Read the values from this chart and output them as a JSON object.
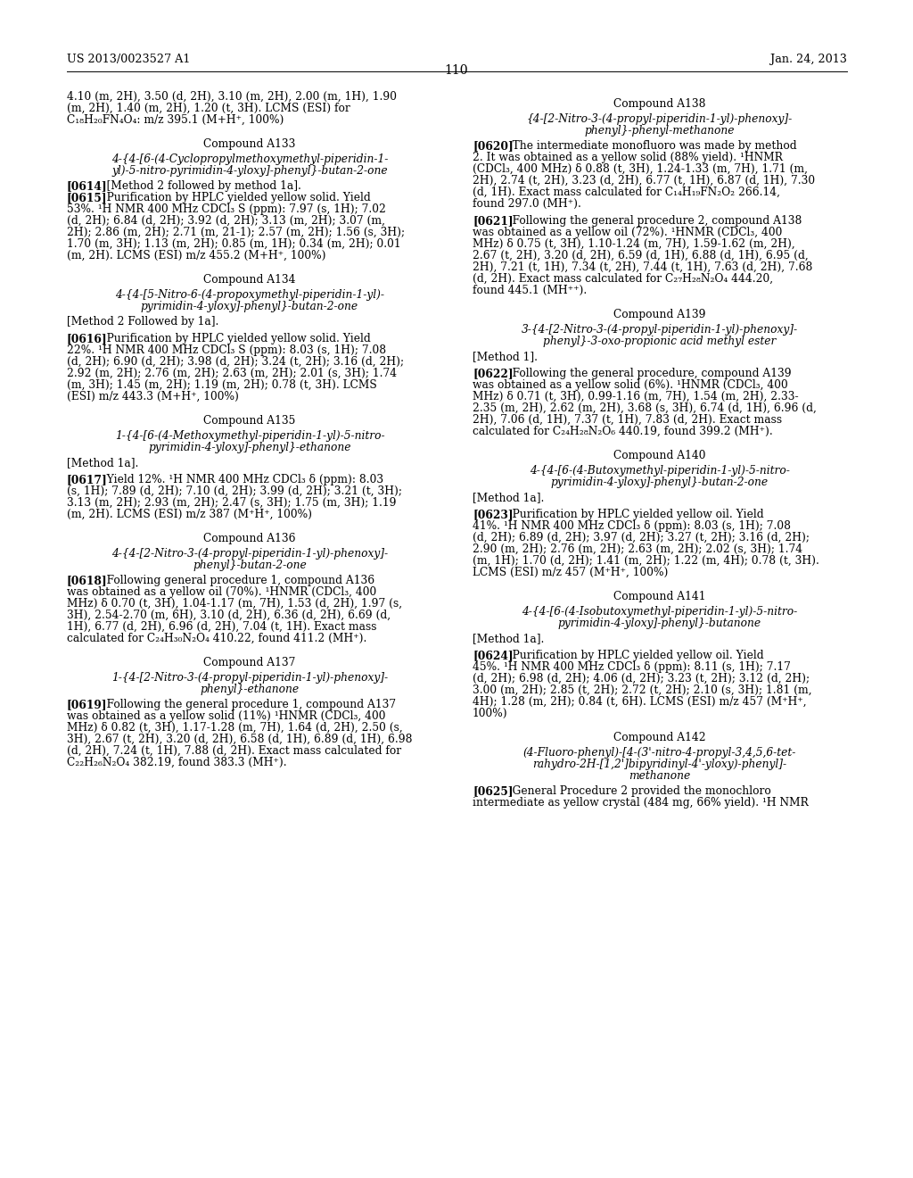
{
  "background_color": "#ffffff",
  "header_left": "US 2013/0023527 A1",
  "header_center": "110",
  "header_right": "Jan. 24, 2013",
  "left_column": [
    {
      "type": "continuation",
      "lines": [
        "4.10 (m, 2H), 3.50 (d, 2H), 3.10 (m, 2H), 2.00 (m, 1H), 1.90",
        "(m, 2H), 1.40 (m, 2H), 1.20 (t, 3H). LCMS (ESI) for",
        "C₁₈H₂₀FN₄O₄: m/z 395.1 (M+H⁺, 100%)"
      ]
    },
    {
      "type": "compound_title",
      "text": "Compound A133"
    },
    {
      "type": "compound_name",
      "lines": [
        "4-{4-[6-(4-Cyclopropylmethoxymethyl-piperidin-1-",
        "yl)-5-nitro-pyrimidin-4-yloxy]-phenyl}-butan-2-one"
      ]
    },
    {
      "type": "bold_bracket",
      "text": "[0614]",
      "rest": "   [Method 2 followed by method 1a]."
    },
    {
      "type": "bold_bracket",
      "text": "[0615]",
      "rest": "   Purification by HPLC yielded yellow solid. Yield"
    },
    {
      "type": "body_lines",
      "lines": [
        "53%. ¹H NMR 400 MHz CDCl₃ S (ppm): 7.97 (s, 1H); 7.02",
        "(d, 2H); 6.84 (d, 2H); 3.92 (d, 2H); 3.13 (m, 2H); 3.07 (m,",
        "2H); 2.86 (m, 2H); 2.71 (m, 21-1); 2.57 (m, 2H); 1.56 (s, 3H);",
        "1.70 (m, 3H); 1.13 (m, 2H); 0.85 (m, 1H); 0.34 (m, 2H); 0.01",
        "(m, 2H). LCMS (ESI) m/z 455.2 (M+H⁺, 100%)"
      ]
    },
    {
      "type": "compound_title",
      "text": "Compound A134"
    },
    {
      "type": "compound_name",
      "lines": [
        "4-{4-[5-Nitro-6-(4-propoxymethyl-piperidin-1-yl)-",
        "pyrimidin-4-yloxy]-phenyl}-butan-2-one"
      ]
    },
    {
      "type": "body_lines",
      "lines": [
        "[Method 2 Followed by 1a]."
      ]
    },
    {
      "type": "bold_bracket",
      "text": "[0616]",
      "rest": "   Purification by HPLC yielded yellow solid. Yield"
    },
    {
      "type": "body_lines",
      "lines": [
        "22%. ¹H NMR 400 MHz CDCl₃ S (ppm): 8.03 (s, 1H); 7.08",
        "(d, 2H); 6.90 (d, 2H); 3.98 (d, 2H); 3.24 (t, 2H); 3.16 (d, 2H);",
        "2.92 (m, 2H); 2.76 (m, 2H); 2.63 (m, 2H); 2.01 (s, 3H); 1.74",
        "(m, 3H); 1.45 (m, 2H); 1.19 (m, 2H); 0.78 (t, 3H). LCMS",
        "(ESI) m/z 443.3 (M+H⁺, 100%)"
      ]
    },
    {
      "type": "compound_title",
      "text": "Compound A135"
    },
    {
      "type": "compound_name",
      "lines": [
        "1-{4-[6-(4-Methoxymethyl-piperidin-1-yl)-5-nitro-",
        "pyrimidin-4-yloxy]-phenyl}-ethanone"
      ]
    },
    {
      "type": "body_lines",
      "lines": [
        "[Method 1a]."
      ]
    },
    {
      "type": "bold_bracket",
      "text": "[0617]",
      "rest": "   Yield 12%. ¹H NMR 400 MHz CDCl₃ δ (ppm): 8.03"
    },
    {
      "type": "body_lines",
      "lines": [
        "(s, 1H); 7.89 (d, 2H); 7.10 (d, 2H); 3.99 (d, 2H); 3.21 (t, 3H);",
        "3.13 (m, 2H); 2.93 (m, 2H); 2.47 (s, 3H); 1.75 (m, 3H); 1.19",
        "(m, 2H). LCMS (ESI) m/z 387 (M⁺H⁺, 100%)"
      ]
    },
    {
      "type": "compound_title",
      "text": "Compound A136"
    },
    {
      "type": "compound_name",
      "lines": [
        "4-{4-[2-Nitro-3-(4-propyl-piperidin-1-yl)-phenoxy]-",
        "phenyl}-butan-2-one"
      ]
    },
    {
      "type": "bold_bracket",
      "text": "[0618]",
      "rest": "   Following general procedure 1, compound A136"
    },
    {
      "type": "body_lines",
      "lines": [
        "was obtained as a yellow oil (70%). ¹HNMR (CDCl₃, 400",
        "MHz) δ 0.70 (t, 3H), 1.04-1.17 (m, 7H), 1.53 (d, 2H), 1.97 (s,",
        "3H), 2.54-2.70 (m, 6H), 3.10 (d, 2H), 6.36 (d, 2H), 6.69 (d,",
        "1H), 6.77 (d, 2H), 6.96 (d, 2H), 7.04 (t, 1H). Exact mass",
        "calculated for C₂₄H₃₀N₂O₄ 410.22, found 411.2 (MH⁺)."
      ]
    },
    {
      "type": "compound_title",
      "text": "Compound A137"
    },
    {
      "type": "compound_name",
      "lines": [
        "1-{4-[2-Nitro-3-(4-propyl-piperidin-1-yl)-phenoxy]-",
        "phenyl}-ethanone"
      ]
    },
    {
      "type": "bold_bracket",
      "text": "[0619]",
      "rest": "   Following the general procedure 1, compound A137"
    },
    {
      "type": "body_lines",
      "lines": [
        "was obtained as a yellow solid (11%) ¹HNMR (CDCl₃, 400",
        "MHz) δ 0.82 (t, 3H), 1.17-1.28 (m, 7H), 1.64 (d, 2H), 2.50 (s,",
        "3H), 2.67 (t, 2H), 3.20 (d, 2H), 6.58 (d, 1H), 6.89 (d, 1H), 6.98",
        "(d, 2H), 7.24 (t, 1H), 7.88 (d, 2H). Exact mass calculated for",
        "C₂₂H₂₆N₂O₄ 382.19, found 383.3 (MH⁺)."
      ]
    }
  ],
  "right_column": [
    {
      "type": "compound_title",
      "text": "Compound A138"
    },
    {
      "type": "compound_name",
      "lines": [
        "{4-[2-Nitro-3-(4-propyl-piperidin-1-yl)-phenoxy]-",
        "phenyl}-phenyl-methanone"
      ]
    },
    {
      "type": "bold_bracket",
      "text": "[0620]",
      "rest": "   The intermediate monofluoro was made by method"
    },
    {
      "type": "body_lines",
      "lines": [
        "2. It was obtained as a yellow solid (88% yield). ¹HNMR",
        "(CDCl₃, 400 MHz) δ 0.88 (t, 3H), 1.24-1.33 (m, 7H), 1.71 (m,",
        "2H), 2.74 (t, 2H), 3.23 (d, 2H), 6.77 (t, 1H), 6.87 (d, 1H), 7.30",
        "(d, 1H). Exact mass calculated for C₁₄H₁₉FN₂O₂ 266.14,",
        "found 297.0 (MH⁺)."
      ]
    },
    {
      "type": "bold_bracket",
      "text": "[0621]",
      "rest": "   Following the general procedure 2, compound A138"
    },
    {
      "type": "body_lines",
      "lines": [
        "was obtained as a yellow oil (72%). ¹HNMR (CDCl₃, 400",
        "MHz) δ 0.75 (t, 3H), 1.10-1.24 (m, 7H), 1.59-1.62 (m, 2H),",
        "2.67 (t, 2H), 3.20 (d, 2H), 6.59 (d, 1H), 6.88 (d, 1H), 6.95 (d,",
        "2H), 7.21 (t, 1H), 7.34 (t, 2H), 7.44 (t, 1H), 7.63 (d, 2H), 7.68",
        "(d, 2H). Exact mass calculated for C₂₇H₂₈N₂O₄ 444.20,",
        "found 445.1 (MH⁺⁺)."
      ]
    },
    {
      "type": "compound_title",
      "text": "Compound A139"
    },
    {
      "type": "compound_name",
      "lines": [
        "3-{4-[2-Nitro-3-(4-propyl-piperidin-1-yl)-phenoxy]-",
        "phenyl}-3-oxo-propionic acid methyl ester"
      ]
    },
    {
      "type": "body_lines",
      "lines": [
        "[Method 1]."
      ]
    },
    {
      "type": "bold_bracket",
      "text": "[0622]",
      "rest": "   Following the general procedure, compound A139"
    },
    {
      "type": "body_lines",
      "lines": [
        "was obtained as a yellow solid (6%). ¹HNMR (CDCl₃, 400",
        "MHz) δ 0.71 (t, 3H), 0.99-1.16 (m, 7H), 1.54 (m, 2H), 2.33-",
        "2.35 (m, 2H), 2.62 (m, 2H), 3.68 (s, 3H), 6.74 (d, 1H), 6.96 (d,",
        "2H), 7.06 (d, 1H), 7.37 (t, 1H), 7.83 (d, 2H). Exact mass",
        "calculated for C₂₄H₂₈N₂O₆ 440.19, found 399.2 (MH⁺)."
      ]
    },
    {
      "type": "compound_title",
      "text": "Compound A140"
    },
    {
      "type": "compound_name",
      "lines": [
        "4-{4-[6-(4-Butoxymethyl-piperidin-1-yl)-5-nitro-",
        "pyrimidin-4-yloxy]-phenyl}-butan-2-one"
      ]
    },
    {
      "type": "body_lines",
      "lines": [
        "[Method 1a]."
      ]
    },
    {
      "type": "bold_bracket",
      "text": "[0623]",
      "rest": "   Purification by HPLC yielded yellow oil. Yield"
    },
    {
      "type": "body_lines",
      "lines": [
        "41%. ¹H NMR 400 MHz CDCl₃ δ (ppm): 8.03 (s, 1H); 7.08",
        "(d, 2H); 6.89 (d, 2H); 3.97 (d, 2H); 3.27 (t, 2H); 3.16 (d, 2H);",
        "2.90 (m, 2H); 2.76 (m, 2H); 2.63 (m, 2H); 2.02 (s, 3H); 1.74",
        "(m, 1H); 1.70 (d, 2H); 1.41 (m, 2H); 1.22 (m, 4H); 0.78 (t, 3H).",
        "LCMS (ESI) m/z 457 (M⁺H⁺, 100%)"
      ]
    },
    {
      "type": "compound_title",
      "text": "Compound A141"
    },
    {
      "type": "compound_name",
      "lines": [
        "4-{4-[6-(4-Isobutoxymethyl-piperidin-1-yl)-5-nitro-",
        "pyrimidin-4-yloxy]-phenyl}-butanone"
      ]
    },
    {
      "type": "body_lines",
      "lines": [
        "[Method 1a]."
      ]
    },
    {
      "type": "bold_bracket",
      "text": "[0624]",
      "rest": "   Purification by HPLC yielded yellow oil. Yield"
    },
    {
      "type": "body_lines",
      "lines": [
        "45%. ¹H NMR 400 MHz CDCl₃ δ (ppm): 8.11 (s, 1H); 7.17",
        "(d, 2H); 6.98 (d, 2H); 4.06 (d, 2H); 3.23 (t, 2H); 3.12 (d, 2H);",
        "3.00 (m, 2H); 2.85 (t, 2H); 2.72 (t, 2H); 2.10 (s, 3H); 1.81 (m,",
        "4H); 1.28 (m, 2H); 0.84 (t, 6H). LCMS (ESI) m/z 457 (M⁺H⁺,",
        "100%)"
      ]
    },
    {
      "type": "compound_title",
      "text": "Compound A142"
    },
    {
      "type": "compound_name",
      "lines": [
        "(4-Fluoro-phenyl)-[4-(3'-nitro-4-propyl-3,4,5,6-tet-",
        "rahydro-2H-[1,2']bipyridinyl-4'-yloxy)-phenyl]-",
        "methanone"
      ]
    },
    {
      "type": "bold_bracket",
      "text": "[0625]",
      "rest": "   General Procedure 2 provided the monochloro"
    },
    {
      "type": "body_lines",
      "lines": [
        "intermediate as yellow crystal (484 mg, 66% yield). ¹H NMR"
      ]
    }
  ]
}
